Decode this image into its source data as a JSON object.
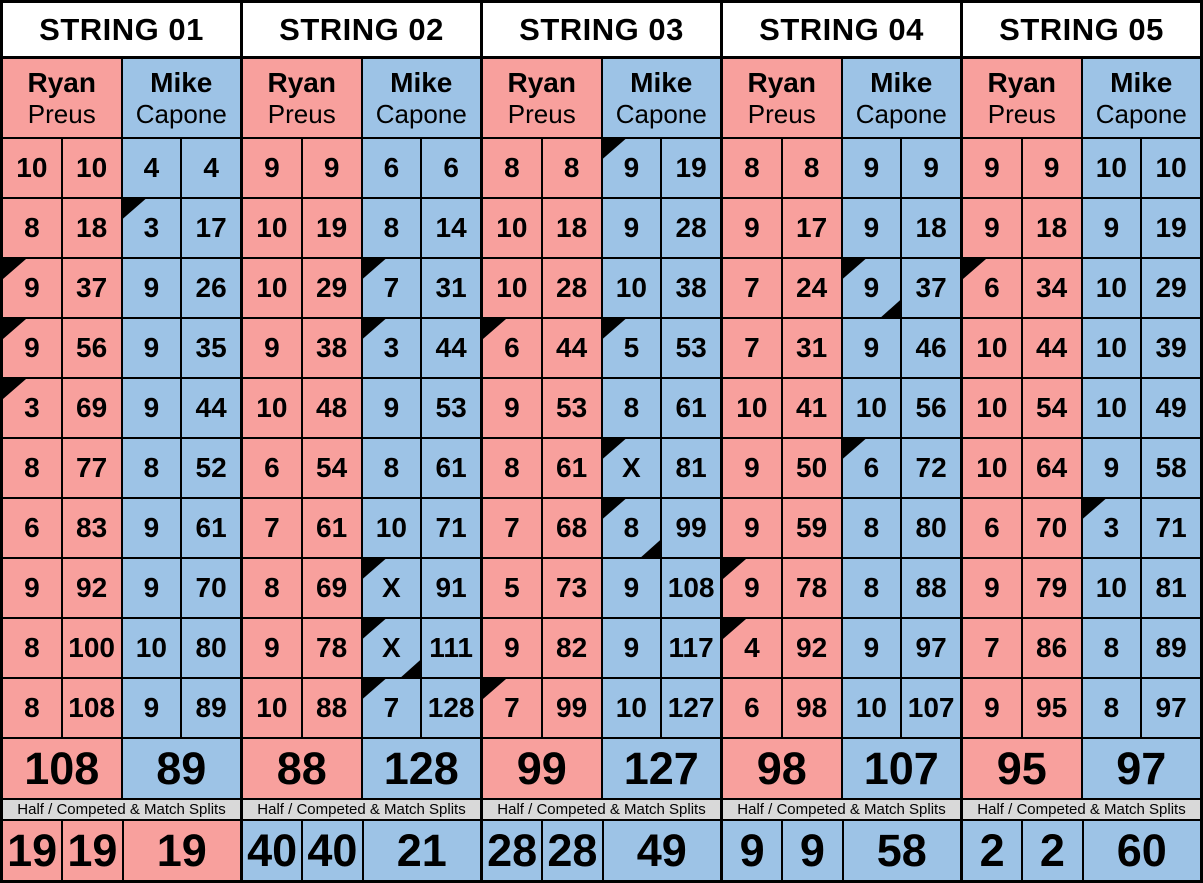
{
  "shared": {
    "splits_label": "Half / Competed & Match Splits"
  },
  "colors": {
    "ryan_bg": "#F8A09D",
    "mike_bg": "#9DC3E6",
    "label_bg": "#D9D9D9",
    "header_bg": "#FFFFFF",
    "border": "#000000"
  },
  "strings": [
    {
      "title": "STRING 01",
      "players": [
        {
          "first": "Ryan",
          "last": "Preus"
        },
        {
          "first": "Mike",
          "last": "Capone"
        }
      ],
      "frames": [
        {
          "r": [
            "10",
            "10"
          ],
          "m": [
            "4",
            "4"
          ],
          "rm": [],
          "mm": []
        },
        {
          "r": [
            "8",
            "18"
          ],
          "m": [
            "3",
            "17"
          ],
          "rm": [],
          "mm": [
            "tl"
          ]
        },
        {
          "r": [
            "9",
            "37"
          ],
          "m": [
            "9",
            "26"
          ],
          "rm": [
            "tl"
          ],
          "mm": []
        },
        {
          "r": [
            "9",
            "56"
          ],
          "m": [
            "9",
            "35"
          ],
          "rm": [
            "tl"
          ],
          "mm": []
        },
        {
          "r": [
            "3",
            "69"
          ],
          "m": [
            "9",
            "44"
          ],
          "rm": [
            "tl"
          ],
          "mm": []
        },
        {
          "r": [
            "8",
            "77"
          ],
          "m": [
            "8",
            "52"
          ],
          "rm": [],
          "mm": []
        },
        {
          "r": [
            "6",
            "83"
          ],
          "m": [
            "9",
            "61"
          ],
          "rm": [],
          "mm": []
        },
        {
          "r": [
            "9",
            "92"
          ],
          "m": [
            "9",
            "70"
          ],
          "rm": [],
          "mm": []
        },
        {
          "r": [
            "8",
            "100"
          ],
          "m": [
            "10",
            "80"
          ],
          "rm": [],
          "mm": []
        },
        {
          "r": [
            "8",
            "108"
          ],
          "m": [
            "9",
            "89"
          ],
          "rm": [],
          "mm": []
        }
      ],
      "totals": {
        "ryan": "108",
        "mike": "89"
      },
      "bottom": {
        "values": [
          "19",
          "19",
          "19"
        ],
        "winner": "ryan"
      }
    },
    {
      "title": "STRING 02",
      "players": [
        {
          "first": "Ryan",
          "last": "Preus"
        },
        {
          "first": "Mike",
          "last": "Capone"
        }
      ],
      "frames": [
        {
          "r": [
            "9",
            "9"
          ],
          "m": [
            "6",
            "6"
          ],
          "rm": [],
          "mm": []
        },
        {
          "r": [
            "10",
            "19"
          ],
          "m": [
            "8",
            "14"
          ],
          "rm": [],
          "mm": []
        },
        {
          "r": [
            "10",
            "29"
          ],
          "m": [
            "7",
            "31"
          ],
          "rm": [],
          "mm": [
            "tl"
          ]
        },
        {
          "r": [
            "9",
            "38"
          ],
          "m": [
            "3",
            "44"
          ],
          "rm": [],
          "mm": [
            "tl"
          ]
        },
        {
          "r": [
            "10",
            "48"
          ],
          "m": [
            "9",
            "53"
          ],
          "rm": [],
          "mm": []
        },
        {
          "r": [
            "6",
            "54"
          ],
          "m": [
            "8",
            "61"
          ],
          "rm": [],
          "mm": []
        },
        {
          "r": [
            "7",
            "61"
          ],
          "m": [
            "10",
            "71"
          ],
          "rm": [],
          "mm": []
        },
        {
          "r": [
            "8",
            "69"
          ],
          "m": [
            "X",
            "91"
          ],
          "rm": [],
          "mm": [
            "tl"
          ]
        },
        {
          "r": [
            "9",
            "78"
          ],
          "m": [
            "X",
            "111"
          ],
          "rm": [],
          "mm": [
            "tl",
            "br"
          ]
        },
        {
          "r": [
            "10",
            "88"
          ],
          "m": [
            "7",
            "128"
          ],
          "rm": [],
          "mm": [
            "tl"
          ]
        }
      ],
      "totals": {
        "ryan": "88",
        "mike": "128"
      },
      "bottom": {
        "values": [
          "40",
          "40",
          "21"
        ],
        "winner": "mike"
      }
    },
    {
      "title": "STRING 03",
      "players": [
        {
          "first": "Ryan",
          "last": "Preus"
        },
        {
          "first": "Mike",
          "last": "Capone"
        }
      ],
      "frames": [
        {
          "r": [
            "8",
            "8"
          ],
          "m": [
            "9",
            "19"
          ],
          "rm": [],
          "mm": [
            "tl"
          ]
        },
        {
          "r": [
            "10",
            "18"
          ],
          "m": [
            "9",
            "28"
          ],
          "rm": [],
          "mm": []
        },
        {
          "r": [
            "10",
            "28"
          ],
          "m": [
            "10",
            "38"
          ],
          "rm": [],
          "mm": []
        },
        {
          "r": [
            "6",
            "44"
          ],
          "m": [
            "5",
            "53"
          ],
          "rm": [
            "tl"
          ],
          "mm": [
            "tl"
          ]
        },
        {
          "r": [
            "9",
            "53"
          ],
          "m": [
            "8",
            "61"
          ],
          "rm": [],
          "mm": []
        },
        {
          "r": [
            "8",
            "61"
          ],
          "m": [
            "X",
            "81"
          ],
          "rm": [],
          "mm": [
            "tl"
          ]
        },
        {
          "r": [
            "7",
            "68"
          ],
          "m": [
            "8",
            "99"
          ],
          "rm": [],
          "mm": [
            "tl",
            "br"
          ]
        },
        {
          "r": [
            "5",
            "73"
          ],
          "m": [
            "9",
            "108"
          ],
          "rm": [],
          "mm": []
        },
        {
          "r": [
            "9",
            "82"
          ],
          "m": [
            "9",
            "117"
          ],
          "rm": [],
          "mm": []
        },
        {
          "r": [
            "7",
            "99"
          ],
          "m": [
            "10",
            "127"
          ],
          "rm": [
            "tl"
          ],
          "mm": []
        }
      ],
      "totals": {
        "ryan": "99",
        "mike": "127"
      },
      "bottom": {
        "values": [
          "28",
          "28",
          "49"
        ],
        "winner": "mike"
      }
    },
    {
      "title": "STRING 04",
      "players": [
        {
          "first": "Ryan",
          "last": "Preus"
        },
        {
          "first": "Mike",
          "last": "Capone"
        }
      ],
      "frames": [
        {
          "r": [
            "8",
            "8"
          ],
          "m": [
            "9",
            "9"
          ],
          "rm": [],
          "mm": []
        },
        {
          "r": [
            "9",
            "17"
          ],
          "m": [
            "9",
            "18"
          ],
          "rm": [],
          "mm": []
        },
        {
          "r": [
            "7",
            "24"
          ],
          "m": [
            "9",
            "37"
          ],
          "rm": [],
          "mm": [
            "tl",
            "br"
          ]
        },
        {
          "r": [
            "7",
            "31"
          ],
          "m": [
            "9",
            "46"
          ],
          "rm": [],
          "mm": []
        },
        {
          "r": [
            "10",
            "41"
          ],
          "m": [
            "10",
            "56"
          ],
          "rm": [],
          "mm": []
        },
        {
          "r": [
            "9",
            "50"
          ],
          "m": [
            "6",
            "72"
          ],
          "rm": [],
          "mm": [
            "tl"
          ]
        },
        {
          "r": [
            "9",
            "59"
          ],
          "m": [
            "8",
            "80"
          ],
          "rm": [],
          "mm": []
        },
        {
          "r": [
            "9",
            "78"
          ],
          "m": [
            "8",
            "88"
          ],
          "rm": [
            "tl"
          ],
          "mm": []
        },
        {
          "r": [
            "4",
            "92"
          ],
          "m": [
            "9",
            "97"
          ],
          "rm": [
            "tl"
          ],
          "mm": []
        },
        {
          "r": [
            "6",
            "98"
          ],
          "m": [
            "10",
            "107"
          ],
          "rm": [],
          "mm": []
        }
      ],
      "totals": {
        "ryan": "98",
        "mike": "107"
      },
      "bottom": {
        "values": [
          "9",
          "9",
          "58"
        ],
        "winner": "mike"
      }
    },
    {
      "title": "STRING 05",
      "players": [
        {
          "first": "Ryan",
          "last": "Preus"
        },
        {
          "first": "Mike",
          "last": "Capone"
        }
      ],
      "frames": [
        {
          "r": [
            "9",
            "9"
          ],
          "m": [
            "10",
            "10"
          ],
          "rm": [],
          "mm": []
        },
        {
          "r": [
            "9",
            "18"
          ],
          "m": [
            "9",
            "19"
          ],
          "rm": [],
          "mm": []
        },
        {
          "r": [
            "6",
            "34"
          ],
          "m": [
            "10",
            "29"
          ],
          "rm": [
            "tl"
          ],
          "mm": []
        },
        {
          "r": [
            "10",
            "44"
          ],
          "m": [
            "10",
            "39"
          ],
          "rm": [],
          "mm": []
        },
        {
          "r": [
            "10",
            "54"
          ],
          "m": [
            "10",
            "49"
          ],
          "rm": [],
          "mm": []
        },
        {
          "r": [
            "10",
            "64"
          ],
          "m": [
            "9",
            "58"
          ],
          "rm": [],
          "mm": []
        },
        {
          "r": [
            "6",
            "70"
          ],
          "m": [
            "3",
            "71"
          ],
          "rm": [],
          "mm": [
            "tl"
          ]
        },
        {
          "r": [
            "9",
            "79"
          ],
          "m": [
            "10",
            "81"
          ],
          "rm": [],
          "mm": []
        },
        {
          "r": [
            "7",
            "86"
          ],
          "m": [
            "8",
            "89"
          ],
          "rm": [],
          "mm": []
        },
        {
          "r": [
            "9",
            "95"
          ],
          "m": [
            "8",
            "97"
          ],
          "rm": [],
          "mm": []
        }
      ],
      "totals": {
        "ryan": "95",
        "mike": "97"
      },
      "bottom": {
        "values": [
          "2",
          "2",
          "60"
        ],
        "winner": "mike"
      }
    }
  ]
}
